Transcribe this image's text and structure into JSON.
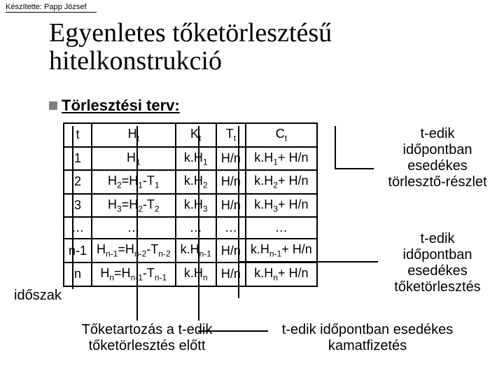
{
  "author": "Készítette: Papp József",
  "title_line1": "Egyenletes tőketörlesztésű",
  "title_line2": "hitelkonstrukció",
  "subhead": "Törlesztési terv:",
  "annot_right1_l1": "t-edik",
  "annot_right1_l2": "időpontban",
  "annot_right1_l3": "esedékes",
  "annot_right1_l4": "törlesztő-részlet",
  "annot_right2_l1": "t-edik",
  "annot_right2_l2": "időpontban",
  "annot_right2_l3": "esedékes",
  "annot_right2_l4": "tőketörlesztés",
  "annot_b1_l1": "Tőketartozás a t-edik",
  "annot_b1_l2": "tőketörlesztés előtt",
  "annot_b2_l1": "t-edik időpontban esedékes",
  "annot_b2_l2": "kamatfizetés",
  "label_left": "időszak",
  "table": {
    "border_color": "#000000",
    "background": "#ffffff",
    "font_size": 18,
    "columns": [
      "t",
      "Ht",
      "Kt",
      "Tt",
      "Ct"
    ],
    "header_rich": [
      "t",
      "H<sub>t</sub>",
      "K<sub>t</sub>",
      "T<sub>t</sub>",
      "C<sub>t</sub>"
    ],
    "rows_rich": [
      [
        "1",
        "H<sub>1</sub>",
        "k.H<sub>1</sub>",
        "H/n",
        "k.H<sub>1</sub>+ H/n"
      ],
      [
        "2",
        "H<sub>2</sub>=H<sub>1</sub>-T<sub>1</sub>",
        "k.H<sub>2</sub>",
        "H/n",
        "k.H<sub>2</sub>+ H/n"
      ],
      [
        "3",
        "H<sub>3</sub>=H<sub>2</sub>-T<sub>2</sub>",
        "k.H<sub>3</sub>",
        "H/n",
        "k.H<sub>3</sub>+ H/n"
      ],
      [
        "…",
        "…",
        "…",
        "…",
        "…"
      ],
      [
        "n-1",
        "H<sub>n-1</sub>=H<sub>n-2</sub>-T<sub>n-2</sub>",
        "k.H<sub>n-1</sub>",
        "H/n",
        "k.H<sub>n-1</sub>+ H/n"
      ],
      [
        "n",
        "H<sub>n</sub>=H<sub>n-1</sub>-T<sub>n-1</sub>",
        "k.H<sub>n</sub>",
        "H/n",
        "k.H<sub>n</sub>+ H/n"
      ]
    ]
  },
  "colors": {
    "background": "#ffffff",
    "text": "#000000",
    "bullet": "#808080"
  }
}
